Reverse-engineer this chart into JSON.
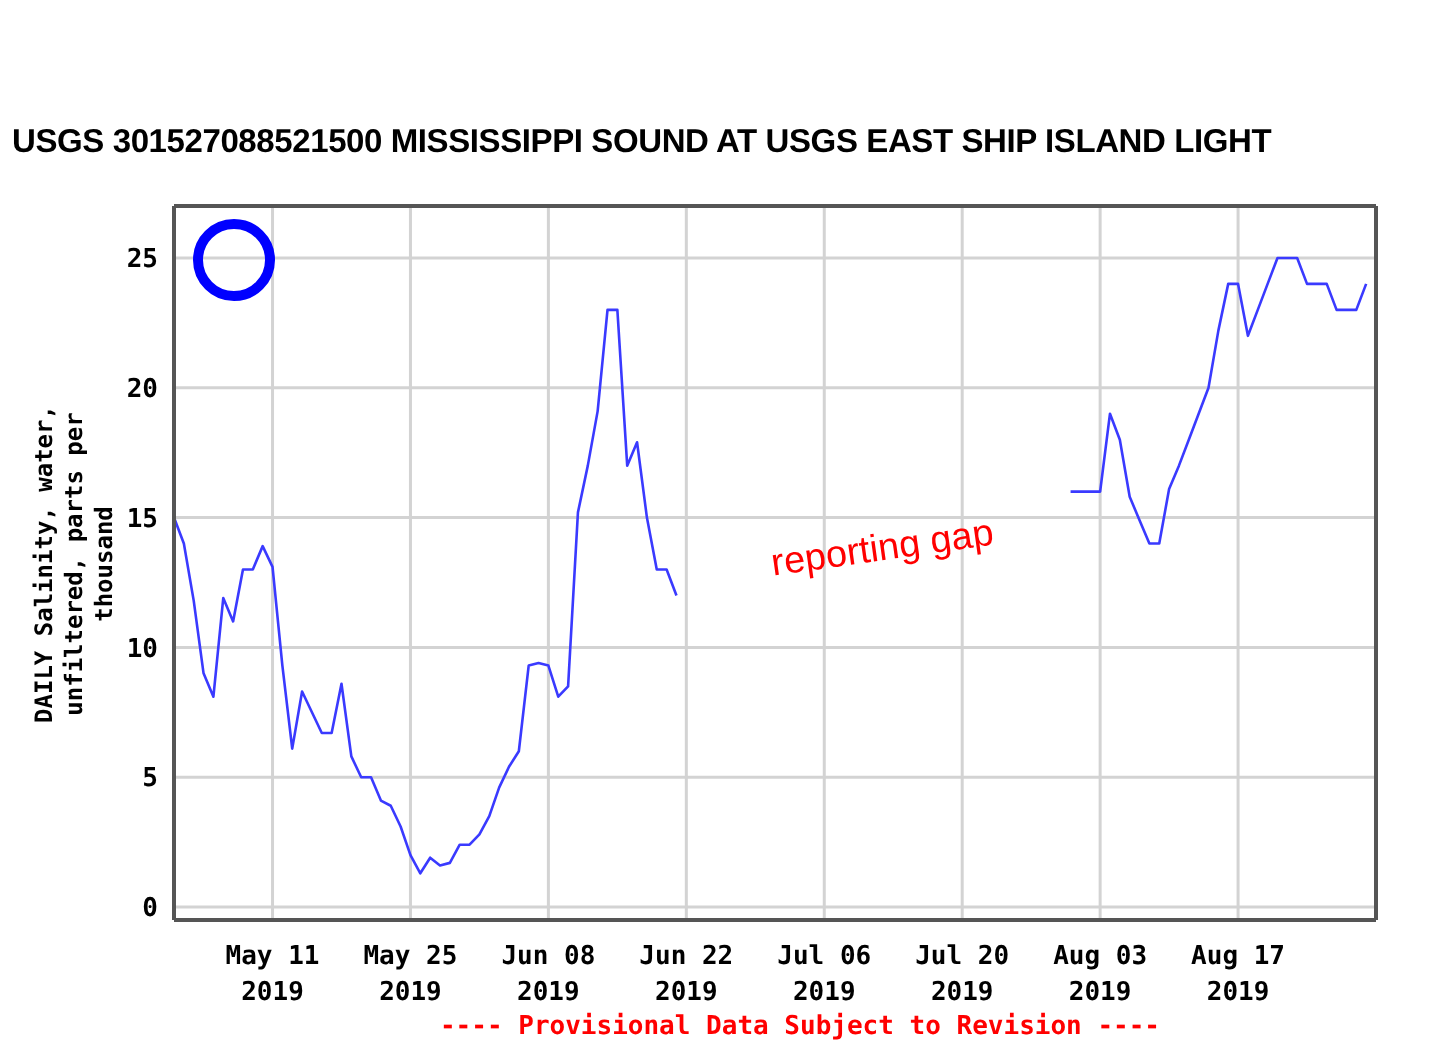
{
  "chart_data": {
    "type": "line",
    "title": "USGS 301527088521500 MISSISSIPPI SOUND AT USGS EAST SHIP ISLAND LIGHT",
    "ylabel": "DAILY Salinity, water, unfiltered, parts per thousand",
    "x": [
      "2019-05-01",
      "2019-05-02",
      "2019-05-03",
      "2019-05-04",
      "2019-05-05",
      "2019-05-06",
      "2019-05-07",
      "2019-05-08",
      "2019-05-09",
      "2019-05-10",
      "2019-05-11",
      "2019-05-12",
      "2019-05-13",
      "2019-05-14",
      "2019-05-15",
      "2019-05-16",
      "2019-05-17",
      "2019-05-18",
      "2019-05-19",
      "2019-05-20",
      "2019-05-21",
      "2019-05-22",
      "2019-05-23",
      "2019-05-24",
      "2019-05-25",
      "2019-05-26",
      "2019-05-27",
      "2019-05-28",
      "2019-05-29",
      "2019-05-30",
      "2019-05-31",
      "2019-06-01",
      "2019-06-02",
      "2019-06-03",
      "2019-06-04",
      "2019-06-05",
      "2019-06-06",
      "2019-06-07",
      "2019-06-08",
      "2019-06-09",
      "2019-06-10",
      "2019-06-11",
      "2019-06-12",
      "2019-06-13",
      "2019-06-14",
      "2019-06-15",
      "2019-06-16",
      "2019-06-17",
      "2019-06-18",
      "2019-06-19",
      "2019-06-20",
      "2019-06-21",
      "2019-07-10",
      "2019-07-31",
      "2019-08-01",
      "2019-08-02",
      "2019-08-03",
      "2019-08-04",
      "2019-08-05",
      "2019-08-06",
      "2019-08-07",
      "2019-08-08",
      "2019-08-09",
      "2019-08-10",
      "2019-08-11",
      "2019-08-12",
      "2019-08-13",
      "2019-08-14",
      "2019-08-15",
      "2019-08-16",
      "2019-08-17",
      "2019-08-18",
      "2019-08-19",
      "2019-08-20",
      "2019-08-21",
      "2019-08-22",
      "2019-08-23",
      "2019-08-24",
      "2019-08-25",
      "2019-08-26",
      "2019-08-27",
      "2019-08-28",
      "2019-08-29",
      "2019-08-30"
    ],
    "series": [
      {
        "color": "#3a3aff",
        "values": [
          15,
          14,
          11.8,
          9,
          8.1,
          11.9,
          11,
          13,
          13,
          13.9,
          13.1,
          9.3,
          6.1,
          8.3,
          7.5,
          6.7,
          6.7,
          8.6,
          5.8,
          5,
          5,
          4.1,
          3.9,
          3.1,
          2,
          1.3,
          1.9,
          1.6,
          1.7,
          2.4,
          2.4,
          2.8,
          3.5,
          4.6,
          5.4,
          6,
          9.3,
          9.4,
          9.3,
          8.1,
          8.5,
          15.2,
          17,
          19.1,
          23,
          23,
          17,
          17.9,
          15,
          13,
          13,
          12,
          null,
          16,
          16,
          16,
          16,
          19,
          18,
          15.8,
          14.9,
          14,
          14,
          16.1,
          17,
          18,
          19,
          20,
          22.2,
          24,
          24,
          22,
          23,
          24,
          25,
          25,
          25,
          24,
          24,
          24,
          23,
          23,
          23,
          24
        ]
      }
    ],
    "xlim": [
      "2019-05-01",
      "2019-08-31"
    ],
    "xticks": [
      {
        "value": "2019-05-11",
        "label": "May 11 2019"
      },
      {
        "value": "2019-05-25",
        "label": "May 25 2019"
      },
      {
        "value": "2019-06-08",
        "label": "Jun 08 2019"
      },
      {
        "value": "2019-06-22",
        "label": "Jun 22 2019"
      },
      {
        "value": "2019-07-06",
        "label": "Jul 06 2019"
      },
      {
        "value": "2019-07-20",
        "label": "Jul 20 2019"
      },
      {
        "value": "2019-08-03",
        "label": "Aug 03 2019"
      },
      {
        "value": "2019-08-17",
        "label": "Aug 17 2019"
      }
    ],
    "ylim": [
      -0.5,
      27
    ],
    "yticks": [
      0,
      5,
      10,
      15,
      20,
      25
    ],
    "grid": true,
    "annotations": [
      "reporting gap",
      "---- Provisional Data Subject to Revision ----"
    ]
  }
}
